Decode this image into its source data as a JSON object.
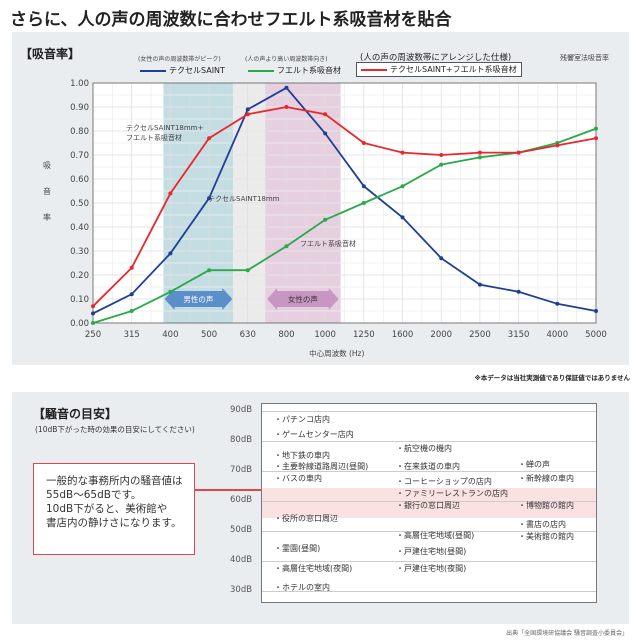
{
  "title": "さらに、人の声の周波数に合わせフエルト系吸音材を貼合",
  "absorption": {
    "heading": "【吸音率】",
    "note_left": "(女性の声の周波数帯がピーク)",
    "note_mid": "(人の声より高い周波数帯向き)",
    "note_right": "(人の声の周波数帯にアレンジした仕様)",
    "method": "残響室法吸音率",
    "ylabel_chars": [
      "吸",
      "音",
      "率"
    ],
    "male_voice": "男性の声",
    "female_voice": "女性の声",
    "disclaimer": "※本データは当社実測値であり保証値ではありません"
  },
  "chart_data": {
    "type": "line",
    "title": "【吸音率】",
    "xlabel": "中心周波数 (Hz)",
    "ylabel": "吸音率",
    "ylim": [
      0,
      1
    ],
    "yticks": [
      "0.00",
      "0.10",
      "0.20",
      "0.30",
      "0.40",
      "0.50",
      "0.60",
      "0.70",
      "0.80",
      "0.90",
      "1.00"
    ],
    "categories": [
      "250",
      "315",
      "400",
      "500",
      "630",
      "800",
      "1000",
      "1250",
      "1600",
      "2000",
      "2500",
      "3150",
      "4000",
      "5000"
    ],
    "grid": true,
    "series": [
      {
        "name": "テクセルSAINT",
        "color": "#1f3f94",
        "label": "テクセルSAINT18mm",
        "values": [
          0.04,
          0.12,
          0.29,
          0.52,
          0.89,
          0.98,
          0.79,
          0.57,
          0.44,
          0.27,
          0.16,
          0.13,
          0.08,
          0.05
        ]
      },
      {
        "name": "フエルト系吸音材",
        "color": "#2aa84a",
        "label": "フエルト系吸音材",
        "values": [
          0.0,
          0.05,
          0.13,
          0.22,
          0.22,
          0.32,
          0.43,
          0.5,
          0.57,
          0.66,
          0.69,
          0.71,
          0.75,
          0.81
        ]
      },
      {
        "name": "テクセルSAINT+フエルト系吸音材",
        "color": "#e8282d",
        "label": "テクセルSAINT18mm+\nフエルト系吸音材",
        "values": [
          0.07,
          0.23,
          0.54,
          0.77,
          0.87,
          0.9,
          0.87,
          0.75,
          0.71,
          0.7,
          0.71,
          0.71,
          0.74,
          0.77
        ]
      }
    ]
  },
  "noise": {
    "heading": "【騒音の目安】",
    "sub": "(10dB下がった時の効果の目安にしてください)",
    "callout": [
      "一般的な事務所内の騒音値は",
      "55dB～65dBです。",
      "10dB下がると、美術館や",
      "書店内の静けさになります。"
    ],
    "levels": [
      "90dB",
      "80dB",
      "70dB",
      "60dB",
      "50dB",
      "40dB",
      "30dB"
    ],
    "items": [
      {
        "col": 0,
        "db": 87,
        "text": "・パチンコ店内"
      },
      {
        "col": 0,
        "db": 82,
        "text": "・ゲームセンター店内"
      },
      {
        "col": 0,
        "db": 75,
        "text": "・地下鉄の車内"
      },
      {
        "col": 0,
        "db": 71.5,
        "text": "・主要幹線道路周辺(昼間)"
      },
      {
        "col": 0,
        "db": 67.5,
        "text": "・バスの車内"
      },
      {
        "col": 0,
        "db": 54,
        "text": "・役所の窓口周辺"
      },
      {
        "col": 0,
        "db": 44,
        "text": "・霊園(昼間)"
      },
      {
        "col": 0,
        "db": 37.5,
        "text": "・高層住宅地域(夜間)"
      },
      {
        "col": 0,
        "db": 31,
        "text": "・ホテルの室内"
      },
      {
        "col": 1,
        "db": 77.5,
        "text": "・航空機の機内"
      },
      {
        "col": 1,
        "db": 71.5,
        "text": "・在来鉄道の車内"
      },
      {
        "col": 1,
        "db": 66.5,
        "text": "・コーヒーショップの店内"
      },
      {
        "col": 1,
        "db": 62.5,
        "text": "・ファミリーレストランの店内"
      },
      {
        "col": 1,
        "db": 58.5,
        "text": "・銀行の窓口周辺"
      },
      {
        "col": 1,
        "db": 48.5,
        "text": "・高層住宅地域(昼間)"
      },
      {
        "col": 1,
        "db": 43,
        "text": "・戸建住宅地(昼間)"
      },
      {
        "col": 1,
        "db": 37.5,
        "text": "・戸建住宅地(夜間)"
      },
      {
        "col": 2,
        "db": 72,
        "text": "・蝉の声"
      },
      {
        "col": 2,
        "db": 67.5,
        "text": "・新幹線の車内"
      },
      {
        "col": 2,
        "db": 58.5,
        "text": "・博物館の館内"
      },
      {
        "col": 2,
        "db": 52,
        "text": "・書店の店内"
      },
      {
        "col": 2,
        "db": 48,
        "text": "・美術館の館内"
      }
    ],
    "source": "出典「全国環境研協議会 騒音調査小委員会」"
  }
}
